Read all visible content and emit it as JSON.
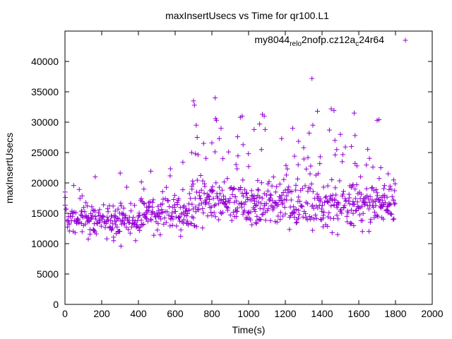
{
  "chart_data": {
    "type": "scatter",
    "title": "maxInsertUsecs vs Time for qr100.L1",
    "xlabel": "Time(s)",
    "ylabel": "maxInsertUsecs",
    "xlim": [
      0,
      2000
    ],
    "ylim": [
      0,
      45000
    ],
    "xticks": [
      0,
      200,
      400,
      600,
      800,
      1000,
      1200,
      1400,
      1600,
      1800,
      2000
    ],
    "yticks": [
      0,
      5000,
      10000,
      15000,
      20000,
      25000,
      30000,
      35000,
      40000
    ],
    "legend": {
      "position": "top-right",
      "parts": [
        "my8044",
        "rel",
        "o",
        "2nofp.cz12a",
        "c",
        "24r64"
      ],
      "label": "my8044_rel_o2nofp.cz12a_c24r64"
    },
    "marker_color": "#9400d3",
    "series": [
      {
        "name": "my8044_rel_o2nofp.cz12a_c24r64",
        "marker": "+",
        "sample_interval_s": 3,
        "phases": [
          {
            "from_s": 0,
            "to_s": 200,
            "mean": 14000,
            "spread": 2500
          },
          {
            "from_s": 200,
            "to_s": 420,
            "mean": 14000,
            "spread": 2400
          },
          {
            "from_s": 420,
            "to_s": 690,
            "mean": 15000,
            "spread": 2500
          },
          {
            "from_s": 690,
            "to_s": 1800,
            "mean": 16500,
            "spread": 3300
          }
        ],
        "outliers": [
          {
            "x": 0,
            "y": 18500
          },
          {
            "x": 2,
            "y": 17600
          },
          {
            "x": 165,
            "y": 21000
          },
          {
            "x": 305,
            "y": 9600
          },
          {
            "x": 228,
            "y": 10800
          },
          {
            "x": 642,
            "y": 23400
          },
          {
            "x": 630,
            "y": 11200
          },
          {
            "x": 700,
            "y": 33500
          },
          {
            "x": 705,
            "y": 32800
          },
          {
            "x": 715,
            "y": 29500
          },
          {
            "x": 720,
            "y": 27500
          },
          {
            "x": 690,
            "y": 25000
          },
          {
            "x": 710,
            "y": 24800
          },
          {
            "x": 755,
            "y": 26500
          },
          {
            "x": 800,
            "y": 26600
          },
          {
            "x": 818,
            "y": 34000
          },
          {
            "x": 820,
            "y": 30600
          },
          {
            "x": 825,
            "y": 30300
          },
          {
            "x": 840,
            "y": 27300
          },
          {
            "x": 850,
            "y": 29000
          },
          {
            "x": 860,
            "y": 24000
          },
          {
            "x": 940,
            "y": 27600
          },
          {
            "x": 955,
            "y": 30800
          },
          {
            "x": 965,
            "y": 31000
          },
          {
            "x": 970,
            "y": 26300
          },
          {
            "x": 1000,
            "y": 22700
          },
          {
            "x": 1030,
            "y": 28800
          },
          {
            "x": 1060,
            "y": 29700
          },
          {
            "x": 1070,
            "y": 25500
          },
          {
            "x": 1075,
            "y": 31300
          },
          {
            "x": 1085,
            "y": 31000
          },
          {
            "x": 1090,
            "y": 28800
          },
          {
            "x": 1180,
            "y": 27300
          },
          {
            "x": 1240,
            "y": 29000
          },
          {
            "x": 1250,
            "y": 24400
          },
          {
            "x": 1270,
            "y": 23000
          },
          {
            "x": 1300,
            "y": 25800
          },
          {
            "x": 1330,
            "y": 28200
          },
          {
            "x": 1345,
            "y": 37200
          },
          {
            "x": 1350,
            "y": 29500
          },
          {
            "x": 1375,
            "y": 31800
          },
          {
            "x": 1390,
            "y": 24300
          },
          {
            "x": 1440,
            "y": 28700
          },
          {
            "x": 1450,
            "y": 32200
          },
          {
            "x": 1465,
            "y": 31900
          },
          {
            "x": 1470,
            "y": 27000
          },
          {
            "x": 1480,
            "y": 25500
          },
          {
            "x": 1500,
            "y": 28000
          },
          {
            "x": 1510,
            "y": 23500
          },
          {
            "x": 1560,
            "y": 26000
          },
          {
            "x": 1575,
            "y": 31500
          },
          {
            "x": 1580,
            "y": 27800
          },
          {
            "x": 1590,
            "y": 22800
          },
          {
            "x": 1610,
            "y": 21000
          },
          {
            "x": 1700,
            "y": 30300
          },
          {
            "x": 1710,
            "y": 30400
          },
          {
            "x": 1720,
            "y": 22500
          },
          {
            "x": 1760,
            "y": 21500
          },
          {
            "x": 1790,
            "y": 20500
          },
          {
            "x": 1485,
            "y": 11500
          },
          {
            "x": 1620,
            "y": 12000
          },
          {
            "x": 1455,
            "y": 11800
          }
        ]
      }
    ]
  }
}
